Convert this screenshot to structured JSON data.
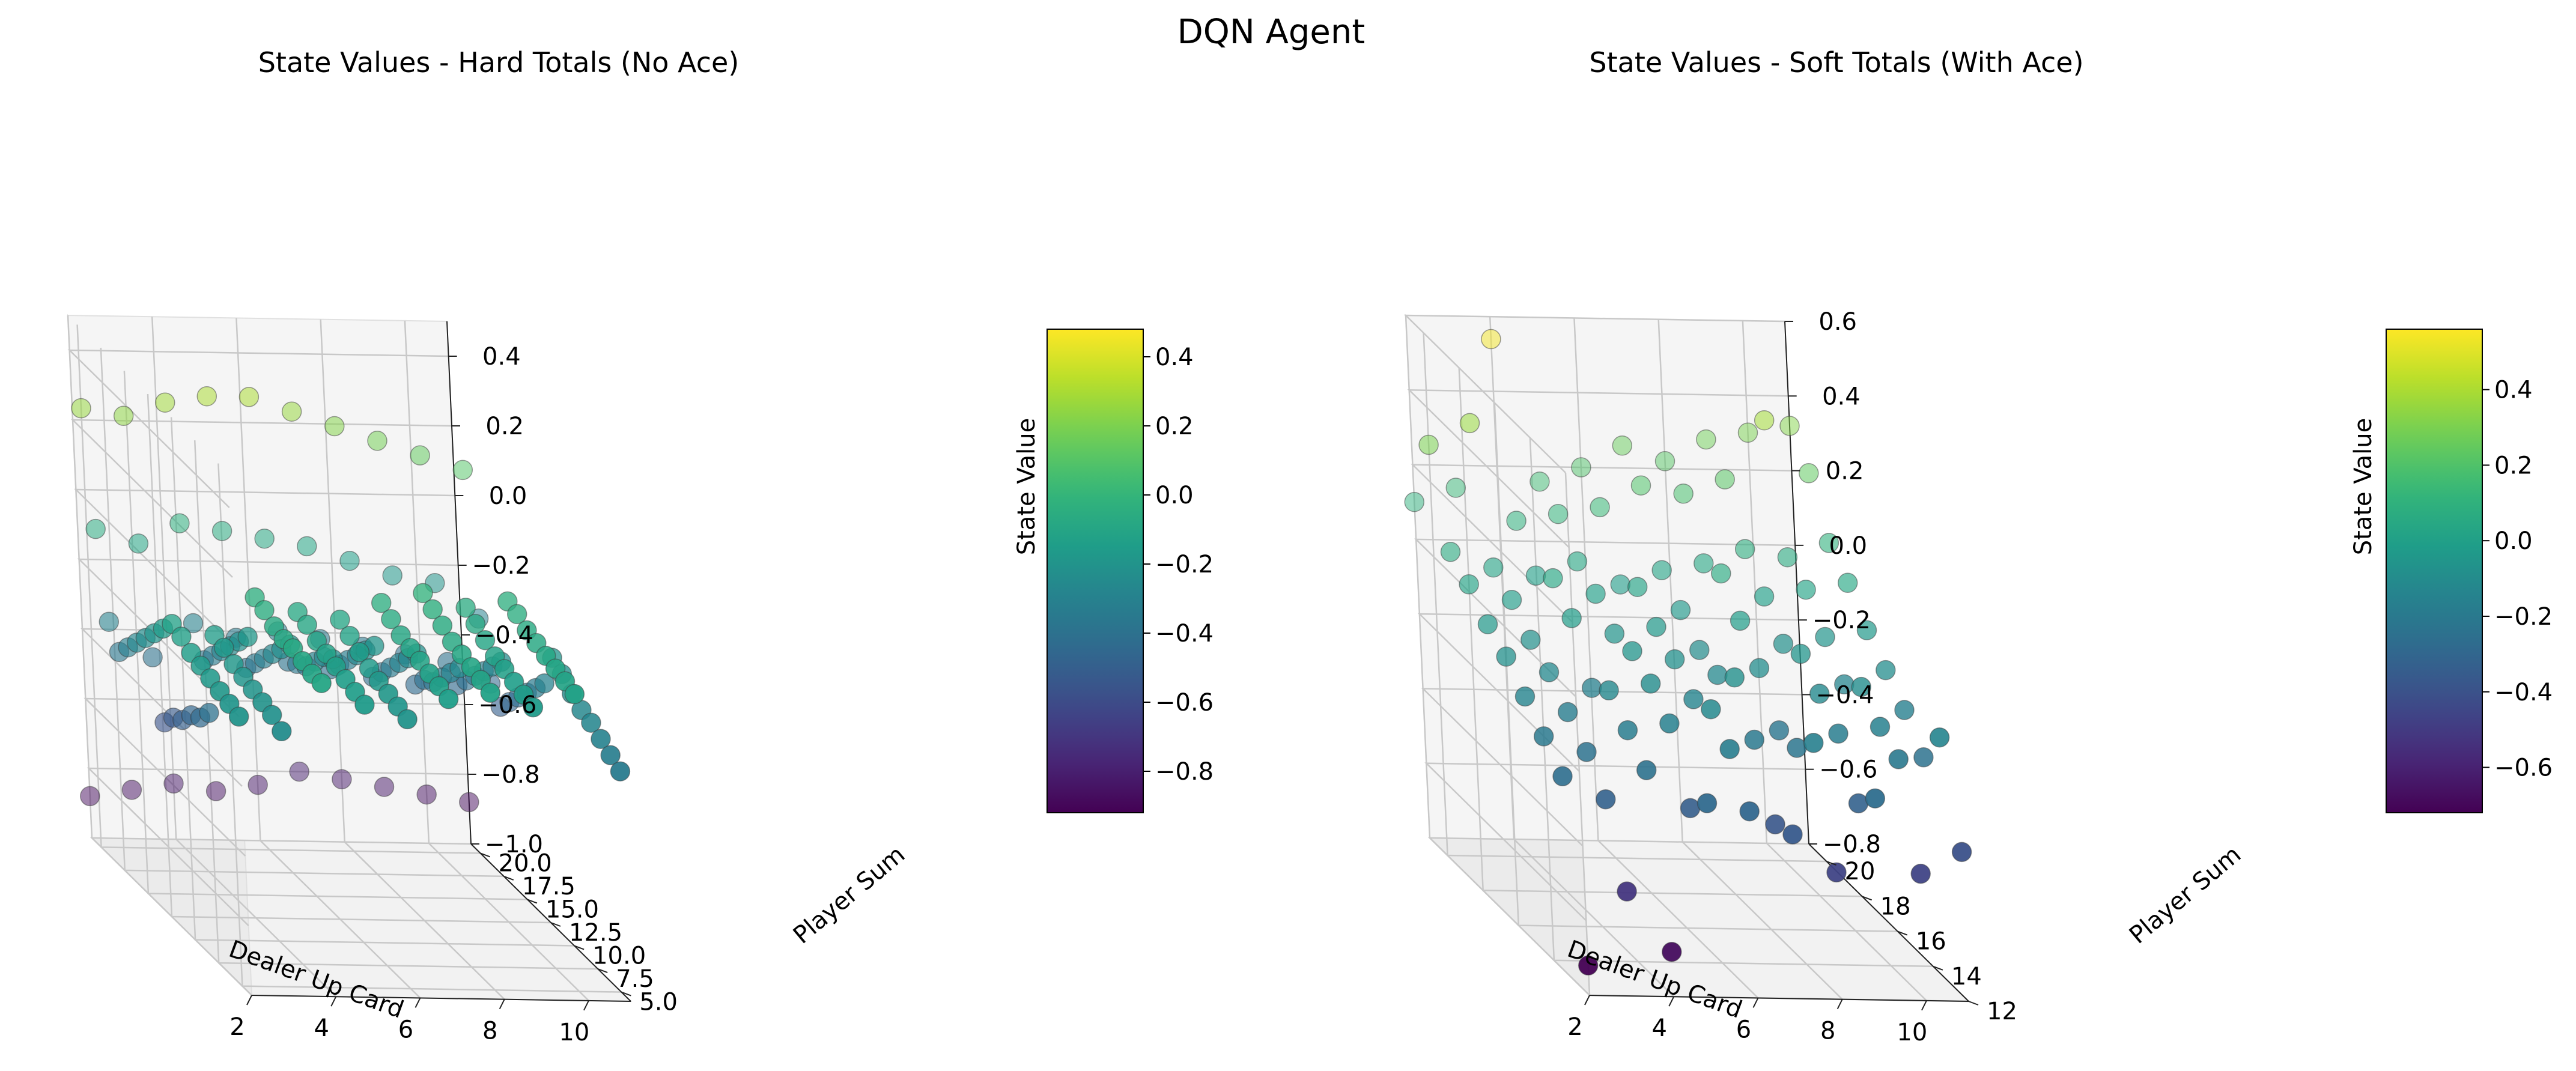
{
  "figure": {
    "suptitle": "DQN Agent"
  },
  "colormap": "viridis",
  "chart_data": [
    {
      "type": "scatter3d",
      "title": "State Values - Hard Totals (No Ace)",
      "xlabel": "Dealer Up Card",
      "ylabel": "Player Sum",
      "zlabel": "",
      "colorbar_label": "State Value",
      "xlim": [
        2,
        11
      ],
      "ylim": [
        4,
        21
      ],
      "zlim": [
        -1.0,
        0.5
      ],
      "xticks": [
        2,
        4,
        6,
        8,
        10
      ],
      "xtick_labels": [
        "2",
        "4",
        "6",
        "8",
        "10"
      ],
      "yticks": [
        5.0,
        7.5,
        10.0,
        12.5,
        15.0,
        17.5,
        20.0
      ],
      "ytick_labels": [
        "5.0",
        "7.5",
        "10.0",
        "12.5",
        "15.0",
        "17.5",
        "20.0"
      ],
      "zticks": [
        -1.0,
        -0.8,
        -0.6,
        -0.4,
        -0.2,
        0.0,
        0.2,
        0.4
      ],
      "ztick_labels": [
        "−1.0",
        "−0.8",
        "−0.6",
        "−0.4",
        "−0.2",
        "0.0",
        "0.2",
        "0.4"
      ],
      "colorbar_range": [
        -0.92,
        0.48
      ],
      "colorbar_ticks": [
        -0.8,
        -0.6,
        -0.4,
        -0.2,
        0.0,
        0.2,
        0.4
      ],
      "colorbar_tick_labels": [
        "−0.8",
        "−0.6",
        "−0.4",
        "−0.2",
        "0.0",
        "0.2",
        "0.4"
      ],
      "grid": true,
      "x_values": [
        2,
        3,
        4,
        5,
        6,
        7,
        8,
        9,
        10,
        11
      ],
      "y_values": [
        4,
        5,
        6,
        7,
        8,
        9,
        10,
        11,
        12,
        13,
        14,
        15,
        16,
        17,
        18,
        19,
        20,
        21
      ],
      "values": [
        [
          -0.2,
          -0.24,
          -0.1,
          -0.16,
          -0.2,
          -0.14,
          -0.12,
          -0.16,
          -0.12,
          -0.34
        ],
        [
          -0.19,
          -0.22,
          -0.1,
          -0.15,
          -0.19,
          -0.13,
          -0.11,
          -0.15,
          -0.11,
          -0.32
        ],
        [
          -0.18,
          -0.21,
          -0.09,
          -0.14,
          -0.18,
          -0.12,
          -0.1,
          -0.14,
          -0.1,
          -0.3
        ],
        [
          -0.17,
          -0.2,
          -0.08,
          -0.13,
          -0.17,
          -0.11,
          -0.09,
          -0.13,
          -0.09,
          -0.28
        ],
        [
          -0.16,
          -0.19,
          -0.08,
          -0.12,
          -0.16,
          -0.1,
          -0.08,
          -0.12,
          -0.08,
          -0.27
        ],
        [
          -0.15,
          -0.18,
          -0.07,
          -0.11,
          -0.14,
          -0.09,
          -0.06,
          -0.1,
          -0.07,
          -0.25
        ],
        [
          -0.13,
          -0.16,
          -0.05,
          -0.09,
          -0.12,
          -0.07,
          -0.04,
          -0.08,
          -0.05,
          -0.22
        ],
        [
          -0.12,
          -0.15,
          -0.04,
          -0.08,
          -0.1,
          -0.05,
          -0.02,
          -0.06,
          -0.04,
          -0.2
        ],
        [
          -0.16,
          -0.4,
          -0.18,
          -0.2,
          -0.24,
          -0.2,
          -0.22,
          -0.26,
          -0.24,
          -0.3
        ],
        [
          -0.2,
          -0.44,
          -0.22,
          -0.24,
          -0.26,
          -0.24,
          -0.26,
          -0.3,
          -0.28,
          -0.34
        ],
        [
          -0.24,
          -0.46,
          -0.26,
          -0.28,
          -0.3,
          -0.28,
          -0.3,
          -0.34,
          -0.32,
          -0.38
        ],
        [
          -0.28,
          -0.5,
          -0.3,
          -0.32,
          -0.34,
          -0.32,
          -0.34,
          -0.38,
          -0.36,
          -0.42
        ],
        [
          -0.32,
          -0.52,
          -0.34,
          -0.36,
          -0.36,
          -0.36,
          -0.38,
          -0.4,
          -0.4,
          -0.46
        ],
        [
          -0.36,
          -0.56,
          -0.38,
          -0.4,
          -0.38,
          -0.4,
          -0.42,
          -0.44,
          -0.44,
          -0.5
        ],
        [
          -0.3,
          -0.4,
          -0.3,
          -0.34,
          -0.32,
          -0.34,
          -0.36,
          -0.38,
          -0.4,
          -0.46
        ],
        [
          -0.06,
          -0.1,
          -0.04,
          -0.06,
          -0.08,
          -0.1,
          -0.14,
          -0.18,
          -0.2,
          -0.3
        ],
        [
          0.26,
          0.24,
          0.28,
          0.3,
          0.3,
          0.26,
          0.22,
          0.18,
          0.14,
          0.1
        ],
        [
          -0.88,
          -0.86,
          -0.84,
          -0.86,
          -0.84,
          -0.8,
          -0.82,
          -0.84,
          -0.86,
          -0.88
        ]
      ]
    },
    {
      "type": "scatter3d",
      "title": "State Values - Soft Totals (With Ace)",
      "xlabel": "Dealer Up Card",
      "ylabel": "Player Sum",
      "zlabel": "",
      "colorbar_label": "State Value",
      "xlim": [
        2,
        11
      ],
      "ylim": [
        12,
        21
      ],
      "zlim": [
        -0.8,
        0.6
      ],
      "xticks": [
        2,
        4,
        6,
        8,
        10
      ],
      "xtick_labels": [
        "2",
        "4",
        "6",
        "8",
        "10"
      ],
      "yticks": [
        12,
        14,
        16,
        18,
        20
      ],
      "ytick_labels": [
        "12",
        "14",
        "16",
        "18",
        "20"
      ],
      "zticks": [
        -0.8,
        -0.6,
        -0.4,
        -0.2,
        0.0,
        0.2,
        0.4,
        0.6
      ],
      "ztick_labels": [
        "−0.8",
        "−0.6",
        "−0.4",
        "−0.2",
        "0.0",
        "0.2",
        "0.4",
        "0.6"
      ],
      "colorbar_range": [
        -0.72,
        0.56
      ],
      "colorbar_ticks": [
        -0.6,
        -0.4,
        -0.2,
        0.0,
        0.2,
        0.4
      ],
      "colorbar_tick_labels": [
        "−0.6",
        "−0.4",
        "−0.2",
        "0.0",
        "0.2",
        "0.4"
      ],
      "grid": true,
      "x_values": [
        2,
        3,
        4,
        5,
        6,
        7,
        8,
        9,
        10,
        11
      ],
      "y_values": [
        12,
        13,
        14,
        15,
        16,
        17,
        18,
        19,
        20,
        21
      ],
      "values": [
        [
          -0.72,
          -0.52,
          -0.68,
          -0.28,
          -0.3,
          -0.36,
          -0.46,
          -0.26,
          -0.46,
          -0.4
        ],
        [
          -0.26,
          -0.32,
          -0.24,
          -0.34,
          -0.18,
          -0.38,
          -0.16,
          -0.32,
          -0.2,
          -0.14
        ],
        [
          -0.2,
          -0.24,
          -0.18,
          -0.16,
          -0.12,
          -0.2,
          -0.22,
          -0.18,
          -0.16,
          -0.24
        ],
        [
          -0.14,
          -0.18,
          -0.12,
          -0.1,
          -0.14,
          -0.08,
          -0.22,
          -0.12,
          -0.1,
          -0.16
        ],
        [
          -0.08,
          -0.12,
          -0.16,
          -0.06,
          -0.08,
          -0.12,
          -0.1,
          -0.06,
          -0.14,
          -0.1
        ],
        [
          -0.04,
          -0.08,
          -0.02,
          -0.06,
          -0.04,
          -0.1,
          -0.02,
          -0.08,
          -0.06,
          -0.04
        ],
        [
          0.02,
          -0.02,
          0.04,
          0.0,
          0.02,
          -0.04,
          0.06,
          0.0,
          0.02,
          0.04
        ],
        [
          0.06,
          0.02,
          0.0,
          0.04,
          -0.02,
          0.02,
          0.04,
          0.08,
          0.06,
          0.1
        ],
        [
          0.3,
          0.36,
          0.1,
          0.12,
          0.14,
          0.2,
          0.18,
          0.22,
          0.38,
          0.24
        ],
        [
          0.1,
          0.14,
          0.54,
          0.16,
          0.2,
          0.26,
          0.22,
          0.28,
          0.3,
          0.32
        ]
      ]
    }
  ]
}
